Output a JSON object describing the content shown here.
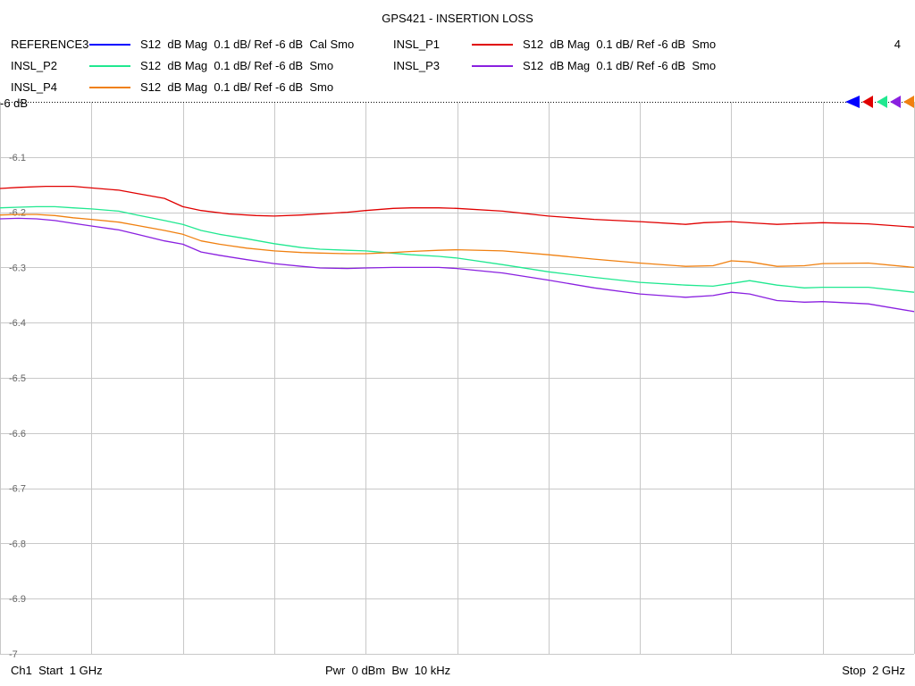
{
  "title": "GPS421 - INSERTION LOSS",
  "channel_number": "4",
  "legend": [
    {
      "name": "REFERENCE3",
      "desc": "S12  dB Mag  0.1 dB/ Ref -6 dB  Cal Smo",
      "color": "#0000ff"
    },
    {
      "name": "INSL_P1",
      "desc": "S12  dB Mag  0.1 dB/ Ref -6 dB  Smo",
      "color": "#e00000"
    },
    {
      "name": "INSL_P2",
      "desc": "S12  dB Mag  0.1 dB/ Ref -6 dB  Smo",
      "color": "#20e890"
    },
    {
      "name": "INSL_P3",
      "desc": "S12  dB Mag  0.1 dB/ Ref -6 dB  Smo",
      "color": "#8a20e0"
    },
    {
      "name": "INSL_P4",
      "desc": "S12  dB Mag  0.1 dB/ Ref -6 dB  Smo",
      "color": "#f08010"
    }
  ],
  "footer": {
    "start": "Ch1  Start  1 GHz",
    "center": "Pwr  0 dBm  Bw  10 kHz",
    "stop": "Stop  2 GHz"
  },
  "chart_data": {
    "type": "line",
    "ref_label": "-6 dB",
    "y_ticks": [
      "-6.1",
      "-6.2",
      "-6.3",
      "-6.4",
      "-6.5",
      "-6.6",
      "-6.7",
      "-6.8",
      "-6.9",
      "-7"
    ],
    "ylim": [
      -7,
      -6
    ],
    "xlim": [
      1,
      2
    ],
    "x_divisions": 10,
    "grid": true,
    "series": [
      {
        "name": "INSL_P1",
        "color": "#e00000",
        "x": [
          1.0,
          1.02,
          1.05,
          1.08,
          1.1,
          1.13,
          1.15,
          1.18,
          1.2,
          1.22,
          1.25,
          1.28,
          1.3,
          1.33,
          1.35,
          1.38,
          1.4,
          1.43,
          1.45,
          1.48,
          1.5,
          1.55,
          1.6,
          1.65,
          1.7,
          1.75,
          1.77,
          1.8,
          1.83,
          1.85,
          1.88,
          1.9,
          1.95,
          2.0
        ],
        "y": [
          -6.157,
          -6.155,
          -6.153,
          -6.153,
          -6.156,
          -6.16,
          -6.166,
          -6.175,
          -6.19,
          -6.197,
          -6.203,
          -6.206,
          -6.207,
          -6.205,
          -6.203,
          -6.2,
          -6.197,
          -6.193,
          -6.192,
          -6.192,
          -6.193,
          -6.198,
          -6.207,
          -6.213,
          -6.217,
          -6.222,
          -6.219,
          -6.217,
          -6.22,
          -6.222,
          -6.22,
          -6.219,
          -6.221,
          -6.227
        ]
      },
      {
        "name": "INSL_P2",
        "color": "#20e890",
        "x": [
          1.0,
          1.02,
          1.04,
          1.06,
          1.08,
          1.1,
          1.13,
          1.15,
          1.18,
          1.2,
          1.22,
          1.24,
          1.27,
          1.3,
          1.33,
          1.35,
          1.38,
          1.4,
          1.42,
          1.45,
          1.48,
          1.5,
          1.55,
          1.6,
          1.65,
          1.7,
          1.75,
          1.78,
          1.8,
          1.82,
          1.85,
          1.88,
          1.9,
          1.95,
          2.0
        ],
        "y": [
          -6.192,
          -6.191,
          -6.19,
          -6.19,
          -6.192,
          -6.194,
          -6.198,
          -6.205,
          -6.215,
          -6.222,
          -6.233,
          -6.24,
          -6.248,
          -6.257,
          -6.264,
          -6.267,
          -6.269,
          -6.27,
          -6.273,
          -6.277,
          -6.28,
          -6.283,
          -6.295,
          -6.308,
          -6.318,
          -6.327,
          -6.332,
          -6.334,
          -6.329,
          -6.324,
          -6.332,
          -6.337,
          -6.336,
          -6.336,
          -6.345
        ]
      },
      {
        "name": "INSL_P3",
        "color": "#8a20e0",
        "x": [
          1.0,
          1.02,
          1.04,
          1.06,
          1.08,
          1.1,
          1.13,
          1.15,
          1.18,
          1.2,
          1.22,
          1.24,
          1.27,
          1.3,
          1.33,
          1.35,
          1.38,
          1.4,
          1.43,
          1.45,
          1.48,
          1.5,
          1.55,
          1.6,
          1.65,
          1.7,
          1.75,
          1.78,
          1.8,
          1.82,
          1.85,
          1.88,
          1.9,
          1.95,
          2.0
        ],
        "y": [
          -6.212,
          -6.211,
          -6.212,
          -6.215,
          -6.22,
          -6.225,
          -6.232,
          -6.24,
          -6.252,
          -6.258,
          -6.272,
          -6.278,
          -6.286,
          -6.293,
          -6.298,
          -6.301,
          -6.302,
          -6.301,
          -6.3,
          -6.3,
          -6.3,
          -6.302,
          -6.31,
          -6.323,
          -6.337,
          -6.348,
          -6.354,
          -6.351,
          -6.345,
          -6.348,
          -6.36,
          -6.363,
          -6.362,
          -6.366,
          -6.38
        ]
      },
      {
        "name": "INSL_P4",
        "color": "#f08010",
        "x": [
          1.0,
          1.02,
          1.04,
          1.06,
          1.08,
          1.1,
          1.13,
          1.15,
          1.18,
          1.2,
          1.22,
          1.24,
          1.27,
          1.3,
          1.33,
          1.35,
          1.38,
          1.4,
          1.43,
          1.45,
          1.48,
          1.5,
          1.55,
          1.6,
          1.65,
          1.7,
          1.75,
          1.78,
          1.8,
          1.82,
          1.85,
          1.88,
          1.9,
          1.95,
          2.0
        ],
        "y": [
          -6.205,
          -6.204,
          -6.204,
          -6.206,
          -6.21,
          -6.213,
          -6.218,
          -6.224,
          -6.233,
          -6.24,
          -6.252,
          -6.258,
          -6.265,
          -6.27,
          -6.273,
          -6.274,
          -6.275,
          -6.275,
          -6.273,
          -6.271,
          -6.269,
          -6.268,
          -6.27,
          -6.277,
          -6.285,
          -6.292,
          -6.298,
          -6.297,
          -6.288,
          -6.29,
          -6.298,
          -6.297,
          -6.293,
          -6.292,
          -6.3
        ]
      }
    ]
  }
}
